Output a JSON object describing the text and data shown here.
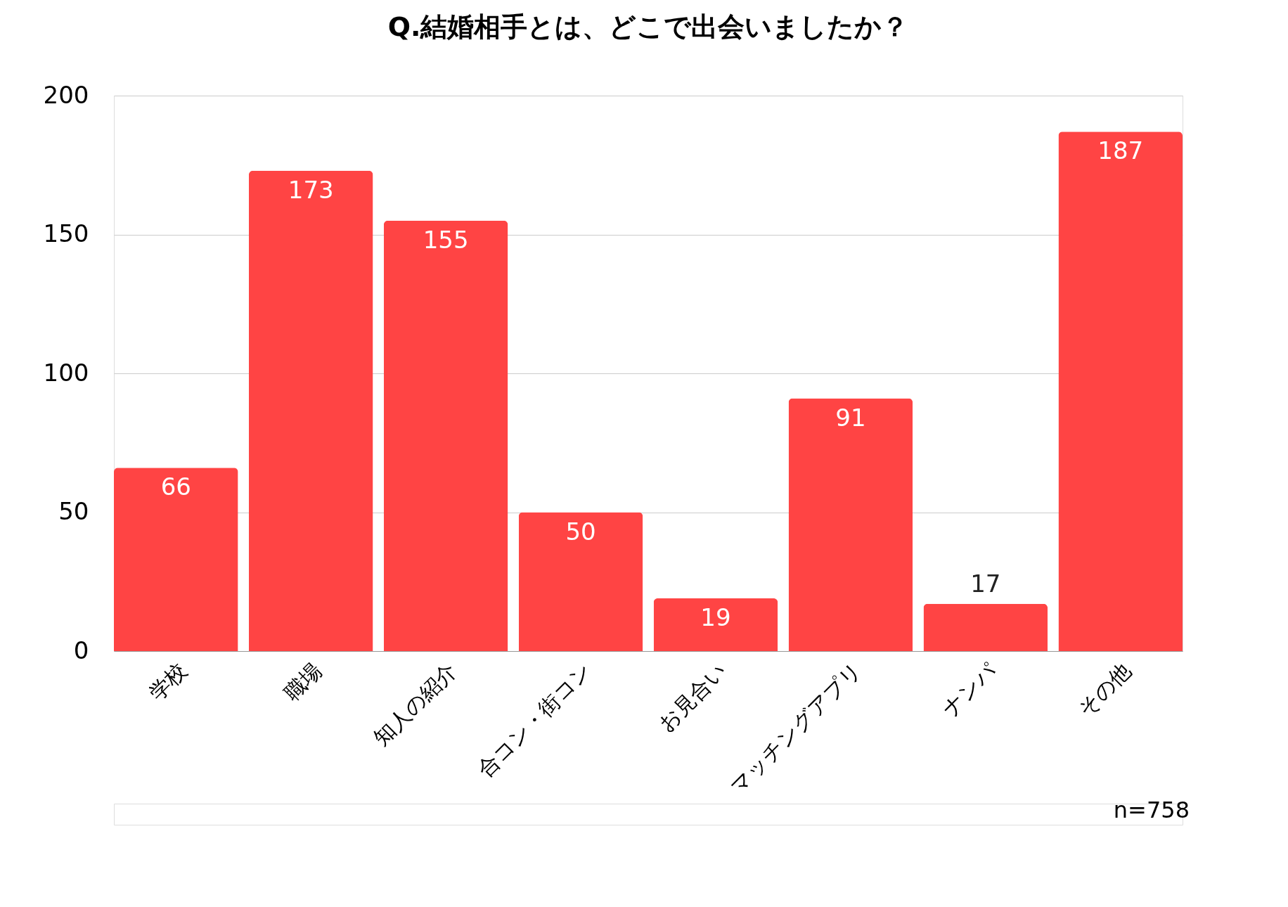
{
  "chart_data": {
    "type": "bar",
    "title": "Q.結婚相手とは、どこで出会いましたか？",
    "categories": [
      "学校",
      "職場",
      "知人の紹介",
      "合コン・街コン",
      "お見合い",
      "マッチングアプリ",
      "ナンパ",
      "その他"
    ],
    "values": [
      66,
      173,
      155,
      50,
      19,
      91,
      17,
      187
    ],
    "color": "#ff4444",
    "ylim": [
      0,
      200
    ],
    "yticks": [
      0,
      50,
      100,
      150,
      200
    ],
    "grid": "y",
    "data_labels": true,
    "annotations": [
      "n=758"
    ]
  }
}
